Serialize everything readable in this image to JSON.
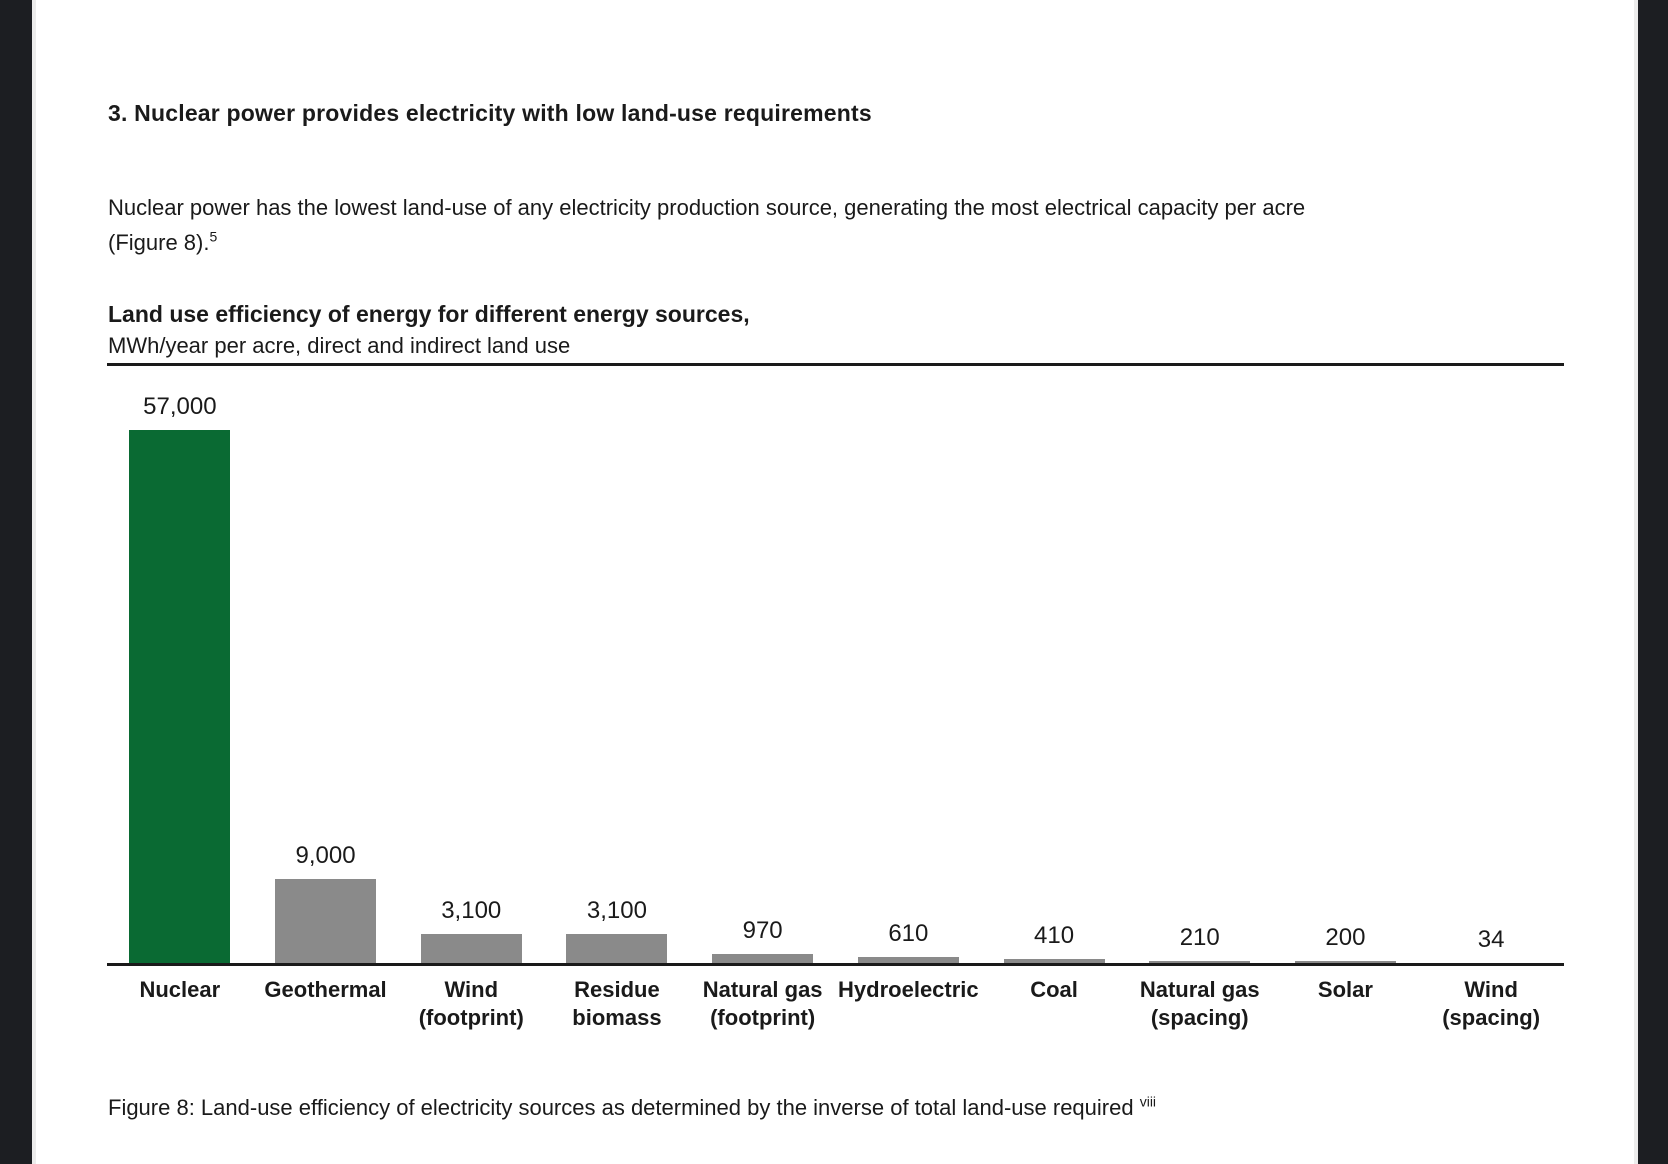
{
  "page": {
    "heading": "3. Nuclear power provides electricity with low land-use requirements",
    "paragraph": {
      "line1": "Nuclear power has the lowest land-use of any electricity production source, generating the most electrical capacity per acre",
      "line2": "(Figure 8).",
      "footnote_marker": "5"
    },
    "caption": {
      "text": "Figure 8: Land-use efficiency of electricity sources as determined by the inverse of total land-use required",
      "footnote_marker": "viii"
    }
  },
  "chart_data": {
    "type": "bar",
    "title": "Land use efficiency of energy for different energy sources,",
    "subtitle": "MWh/year per acre, direct and indirect land use",
    "ylabel": "MWh/year per acre, direct and indirect land use",
    "categories": [
      "Nuclear",
      "Geothermal",
      "Wind (footprint)",
      "Residue biomass",
      "Natural gas (footprint)",
      "Hydroelectric",
      "Coal",
      "Natural gas (spacing)",
      "Solar",
      "Wind (spacing)"
    ],
    "category_lines": [
      [
        "Nuclear"
      ],
      [
        "Geothermal"
      ],
      [
        "Wind",
        "(footprint)"
      ],
      [
        "Residue",
        "biomass"
      ],
      [
        "Natural gas",
        "(footprint)"
      ],
      [
        "Hydroelectric"
      ],
      [
        "Coal"
      ],
      [
        "Natural gas",
        "(spacing)"
      ],
      [
        "Solar"
      ],
      [
        "Wind",
        "(spacing)"
      ]
    ],
    "values": [
      57000,
      9000,
      3100,
      3100,
      970,
      610,
      410,
      210,
      200,
      34
    ],
    "value_labels": [
      "57,000",
      "9,000",
      "3,100",
      "3,100",
      "970",
      "610",
      "410",
      "210",
      "200",
      "34"
    ],
    "ylim": [
      0,
      57000
    ],
    "grid": false,
    "legend": null,
    "highlight_index": 0,
    "colors": {
      "highlight_bar": "#0a6a33",
      "default_bar": "#8a8a8a",
      "axis": "#1a1a1a"
    }
  }
}
